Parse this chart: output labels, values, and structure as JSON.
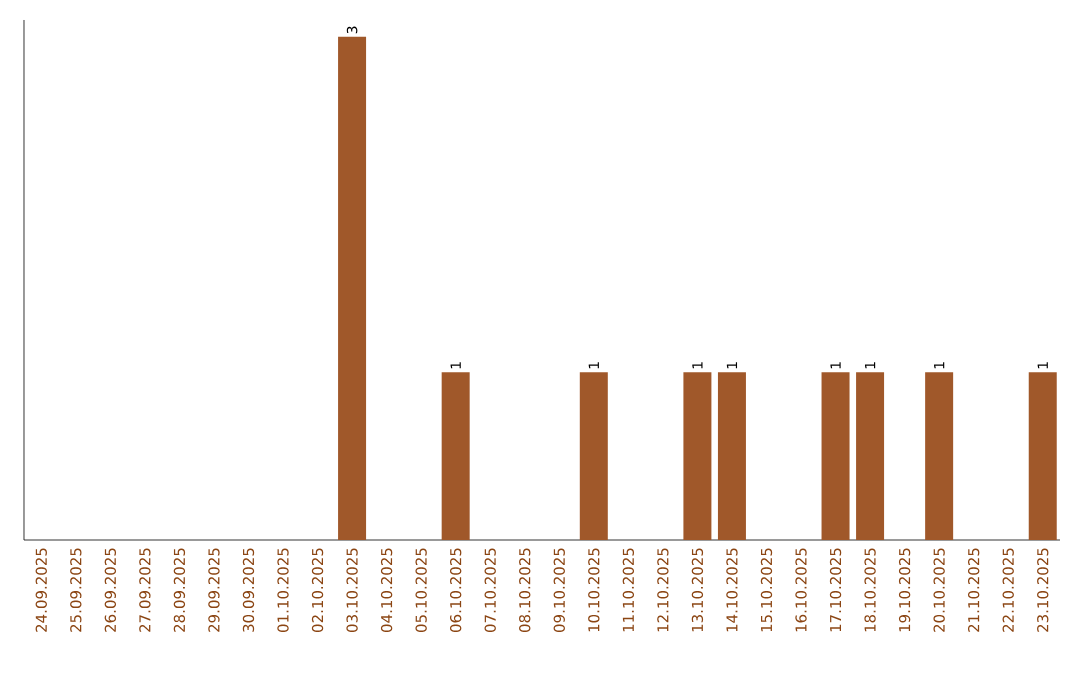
{
  "chart_data": {
    "type": "bar",
    "categories": [
      "24.09.2025",
      "25.09.2025",
      "26.09.2025",
      "27.09.2025",
      "28.09.2025",
      "29.09.2025",
      "30.09.2025",
      "01.10.2025",
      "02.10.2025",
      "03.10.2025",
      "04.10.2025",
      "05.10.2025",
      "06.10.2025",
      "07.10.2025",
      "08.10.2025",
      "09.10.2025",
      "10.10.2025",
      "11.10.2025",
      "12.10.2025",
      "13.10.2025",
      "14.10.2025",
      "15.10.2025",
      "16.10.2025",
      "17.10.2025",
      "18.10.2025",
      "19.10.2025",
      "20.10.2025",
      "21.10.2025",
      "22.10.2025",
      "23.10.2025"
    ],
    "values": [
      0,
      0,
      0,
      0,
      0,
      0,
      0,
      0,
      0,
      3,
      0,
      0,
      1,
      0,
      0,
      0,
      1,
      0,
      0,
      1,
      1,
      0,
      0,
      1,
      1,
      0,
      1,
      0,
      0,
      1
    ],
    "value_labels": [
      null,
      null,
      null,
      null,
      null,
      null,
      null,
      null,
      null,
      "3",
      null,
      null,
      "1",
      null,
      null,
      null,
      "1",
      null,
      null,
      "1",
      "1",
      null,
      null,
      "1",
      "1",
      null,
      "1",
      null,
      null,
      "1"
    ],
    "color": "#a0582a",
    "ylim": [
      0,
      3.1
    ]
  }
}
